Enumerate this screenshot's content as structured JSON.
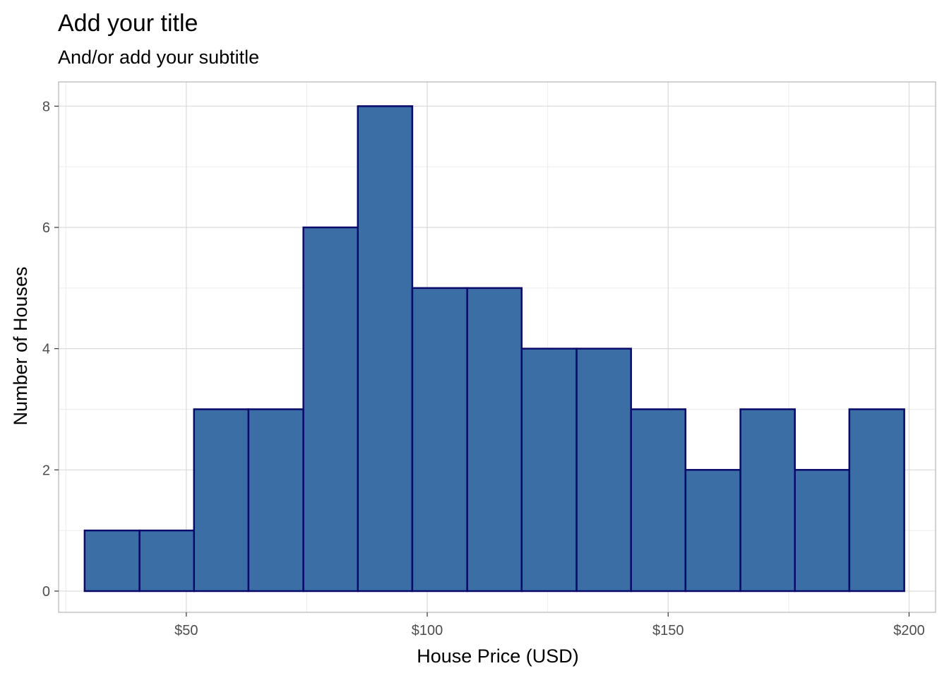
{
  "chart_data": {
    "type": "histogram",
    "title": "Add your title",
    "subtitle": "And/or add your subtitle",
    "xlabel": "House Price (USD)",
    "ylabel": "Number of Houses",
    "xlim": [
      23.5,
      205.5
    ],
    "ylim": [
      -0.35,
      8.4
    ],
    "xticks": [
      50,
      100,
      150,
      200
    ],
    "xtick_labels": [
      "$50",
      "$100",
      "$150",
      "$200"
    ],
    "xminor": [
      25,
      75,
      125,
      175
    ],
    "yticks": [
      0,
      2,
      4,
      6,
      8
    ],
    "ytick_labels": [
      "0",
      "2",
      "4",
      "6",
      "8"
    ],
    "yminor": [
      1,
      3,
      5,
      7
    ],
    "grid": true,
    "bins": [
      {
        "start": 28.9,
        "end": 40.3,
        "count": 1
      },
      {
        "start": 40.3,
        "end": 51.6,
        "count": 1
      },
      {
        "start": 51.6,
        "end": 62.9,
        "count": 3
      },
      {
        "start": 62.9,
        "end": 74.3,
        "count": 3
      },
      {
        "start": 74.3,
        "end": 85.6,
        "count": 6
      },
      {
        "start": 85.6,
        "end": 96.9,
        "count": 8
      },
      {
        "start": 96.9,
        "end": 108.3,
        "count": 5
      },
      {
        "start": 108.3,
        "end": 119.6,
        "count": 5
      },
      {
        "start": 119.6,
        "end": 131.0,
        "count": 4
      },
      {
        "start": 131.0,
        "end": 142.3,
        "count": 4
      },
      {
        "start": 142.3,
        "end": 153.6,
        "count": 3
      },
      {
        "start": 153.6,
        "end": 165.0,
        "count": 2
      },
      {
        "start": 165.0,
        "end": 176.3,
        "count": 3
      },
      {
        "start": 176.3,
        "end": 187.6,
        "count": 2
      },
      {
        "start": 187.6,
        "end": 199.0,
        "count": 3
      }
    ],
    "colors": {
      "bar_fill": "#3a6ea5",
      "bar_outline": "#0a0a6b",
      "grid_major": "#d9d9d9",
      "grid_minor": "#ececec",
      "panel_border": "#b3b3b3",
      "tick_text": "#4d4d4d"
    }
  }
}
